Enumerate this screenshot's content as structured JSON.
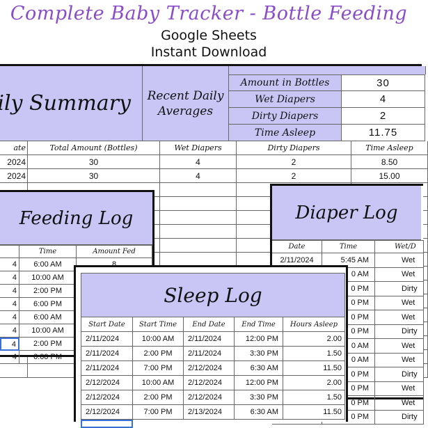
{
  "header": {
    "title": "Complete Baby Tracker - Bottle Feeding",
    "line1": "Google Sheets",
    "line2": "Instant Download"
  },
  "summary": {
    "title": "aily Summary",
    "averages_label_1": "Recent Daily",
    "averages_label_2": "Averages",
    "metrics": [
      {
        "label": "Amount in Bottles",
        "value": "30"
      },
      {
        "label": "Wet Diapers",
        "value": "4"
      },
      {
        "label": "Dirty Diapers",
        "value": "2"
      },
      {
        "label": "Time Asleep",
        "value": "11.75"
      }
    ],
    "columns": [
      "ate",
      "Total Amount (Bottles)",
      "Wet Diapers",
      "Dirty Diapers",
      "Time Asleep"
    ],
    "rows": [
      [
        "2024",
        "30",
        "4",
        "2",
        "8.50"
      ],
      [
        "2024",
        "30",
        "4",
        "2",
        "15.00"
      ]
    ]
  },
  "feeding": {
    "title": "Feeding Log",
    "columns": [
      "",
      "Time",
      "Amount Fed"
    ],
    "rows": [
      [
        "4",
        "6:00 AM",
        "8"
      ],
      [
        "4",
        "10:00 AM",
        ""
      ],
      [
        "4",
        "2:00 PM",
        ""
      ],
      [
        "4",
        "6:00 PM",
        ""
      ],
      [
        "4",
        "6:00 AM",
        ""
      ],
      [
        "4",
        "10:00 AM",
        ""
      ],
      [
        "4",
        "2:00 PM",
        ""
      ],
      [
        "4",
        "6:00 PM",
        ""
      ]
    ]
  },
  "diaper": {
    "title": "Diaper Log",
    "columns": [
      "Date",
      "Time",
      "Wet/D"
    ],
    "rows": [
      [
        "2/11/2024",
        "5:45 AM",
        "Wet"
      ],
      [
        "",
        "0 AM",
        "Wet"
      ],
      [
        "",
        "0 PM",
        "Dirty"
      ],
      [
        "",
        "0 PM",
        "Wet"
      ],
      [
        "",
        "0 PM",
        "Wet"
      ],
      [
        "",
        "0 PM",
        "Dirty"
      ],
      [
        "",
        "0 AM",
        "Wet"
      ],
      [
        "",
        "0 AM",
        "Wet"
      ],
      [
        "",
        "0 PM",
        "Dirty"
      ],
      [
        "",
        "0 PM",
        "Wet"
      ],
      [
        "",
        "0 PM",
        "Wet"
      ],
      [
        "",
        "0 PM",
        "Dirty"
      ]
    ]
  },
  "sleep": {
    "title": "Sleep Log",
    "columns": [
      "Start Date",
      "Start Time",
      "End Date",
      "End Time",
      "Hours Asleep"
    ],
    "rows": [
      [
        "2/11/2024",
        "10:00 AM",
        "2/11/2024",
        "12:00 PM",
        "2.00"
      ],
      [
        "2/11/2024",
        "2:00 PM",
        "2/11/2024",
        "3:30 PM",
        "1.50"
      ],
      [
        "2/11/2024",
        "7:00 PM",
        "2/12/2024",
        "6:30 AM",
        "11.50"
      ],
      [
        "2/12/2024",
        "10:00 AM",
        "2/12/2024",
        "12:00 PM",
        "2.00"
      ],
      [
        "2/12/2024",
        "2:00 PM",
        "2/12/2024",
        "3:30 PM",
        "1.50"
      ],
      [
        "2/12/2024",
        "7:00 PM",
        "2/13/2024",
        "6:30 AM",
        "11.50"
      ]
    ]
  },
  "colors": {
    "accent": "#8a4cc9",
    "header_fill": "#c9c6f6",
    "selection": "#3b6fd8"
  }
}
